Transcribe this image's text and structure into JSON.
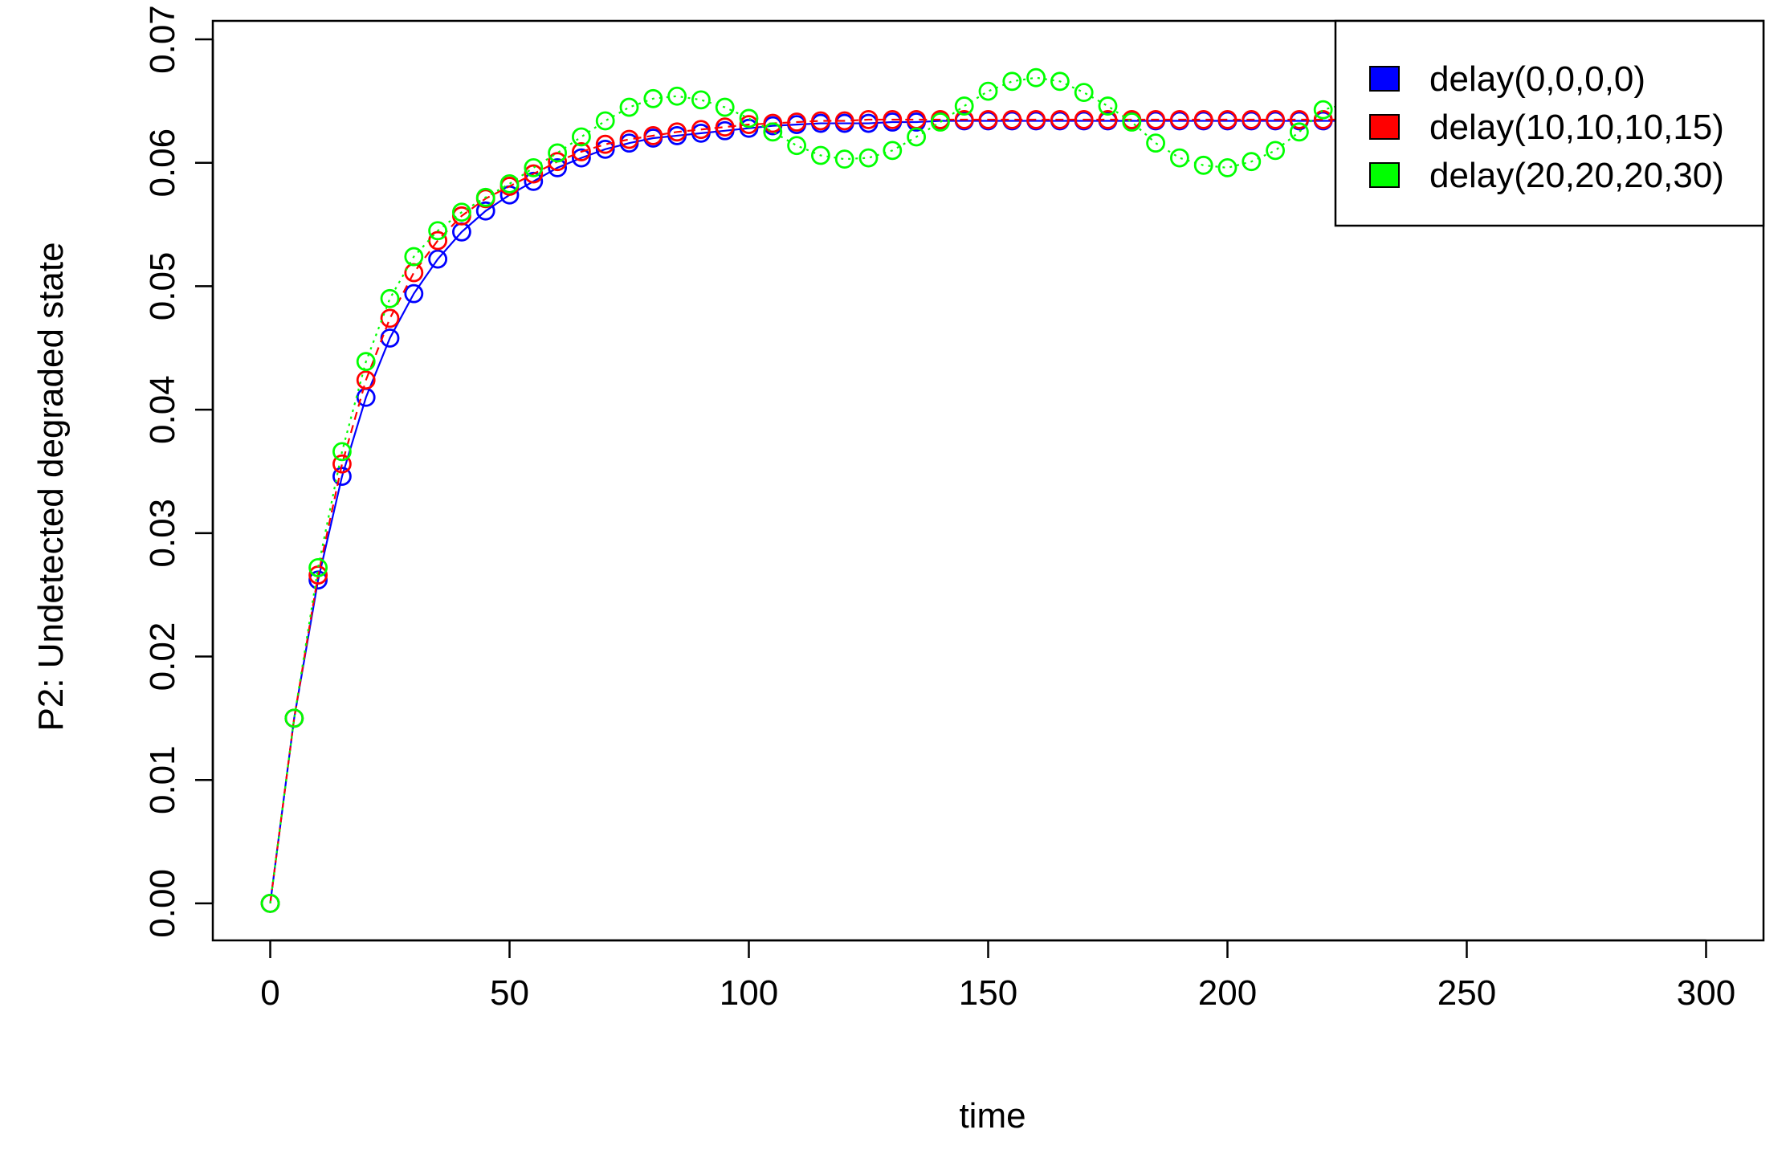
{
  "chart_data": {
    "type": "line",
    "title": "",
    "xlabel": "time",
    "ylabel": "P2: Undetected degraded state",
    "xlim": [
      -12,
      312
    ],
    "ylim": [
      -0.003,
      0.0715
    ],
    "xticks": [
      0,
      50,
      100,
      150,
      200,
      250,
      300
    ],
    "yticks": [
      0.0,
      0.01,
      0.02,
      0.03,
      0.04,
      0.05,
      0.06,
      0.07
    ],
    "xtick_labels": [
      "0",
      "50",
      "100",
      "150",
      "200",
      "250",
      "300"
    ],
    "ytick_labels": [
      "0.00",
      "0.01",
      "0.02",
      "0.03",
      "0.04",
      "0.05",
      "0.06",
      "0.07"
    ],
    "grid": false,
    "legend_position": "top-right",
    "marker": "open-circle",
    "x": [
      0,
      5,
      10,
      15,
      20,
      25,
      30,
      35,
      40,
      45,
      50,
      55,
      60,
      65,
      70,
      75,
      80,
      85,
      90,
      95,
      100,
      105,
      110,
      115,
      120,
      125,
      130,
      135,
      140,
      145,
      150,
      155,
      160,
      165,
      170,
      175,
      180,
      185,
      190,
      195,
      200,
      205,
      210,
      215,
      220,
      225,
      230,
      235,
      240,
      245,
      250,
      255,
      260,
      265,
      270,
      275,
      280,
      285,
      290,
      295,
      300
    ],
    "series": [
      {
        "name": "delay(0,0,0,0)",
        "color": "#0000ff",
        "line_style": "solid",
        "values": [
          0.0,
          0.015,
          0.0262,
          0.0346,
          0.041,
          0.0458,
          0.0494,
          0.0522,
          0.0544,
          0.0561,
          0.0574,
          0.0585,
          0.0596,
          0.0604,
          0.0611,
          0.0616,
          0.062,
          0.0622,
          0.0624,
          0.0626,
          0.0628,
          0.063,
          0.0631,
          0.0632,
          0.0632,
          0.0632,
          0.0633,
          0.0633,
          0.0634,
          0.0634,
          0.0634,
          0.0634,
          0.0634,
          0.0634,
          0.0634,
          0.0634,
          0.0634,
          0.0634,
          0.0634,
          0.0634,
          0.0634,
          0.0634,
          0.0634,
          0.0634,
          0.0634,
          0.0634,
          0.0634,
          0.0634,
          0.0634,
          0.0634,
          0.0634,
          0.0634,
          0.0634,
          0.0634,
          0.0634,
          0.0634,
          0.0634,
          0.0634,
          0.0634,
          0.0634,
          0.0634
        ]
      },
      {
        "name": "delay(10,10,10,15)",
        "color": "#ff0000",
        "line_style": "dashed",
        "values": [
          0.0,
          0.015,
          0.0266,
          0.0356,
          0.0424,
          0.0474,
          0.0511,
          0.0537,
          0.0557,
          0.0571,
          0.0581,
          0.0591,
          0.0601,
          0.0609,
          0.0615,
          0.0619,
          0.0622,
          0.0625,
          0.0627,
          0.0629,
          0.0631,
          0.0632,
          0.0633,
          0.0634,
          0.0634,
          0.0635,
          0.0635,
          0.0635,
          0.0635,
          0.0635,
          0.0635,
          0.0635,
          0.0635,
          0.0635,
          0.0635,
          0.0635,
          0.0635,
          0.0635,
          0.0635,
          0.0635,
          0.0635,
          0.0635,
          0.0635,
          0.0635,
          0.0635,
          0.0635,
          0.0635,
          0.0635,
          0.0635,
          0.0635,
          0.0635,
          0.0635,
          0.0635,
          0.0635,
          0.0635,
          0.0635,
          0.0635,
          0.0635,
          0.0635,
          0.0635,
          0.0635
        ]
      },
      {
        "name": "delay(20,20,20,30)",
        "color": "#00ff00",
        "line_style": "dotted",
        "values": [
          0.0,
          0.015,
          0.0272,
          0.0366,
          0.0439,
          0.049,
          0.0524,
          0.0545,
          0.056,
          0.0572,
          0.0583,
          0.0596,
          0.0608,
          0.0621,
          0.0634,
          0.0645,
          0.0652,
          0.0654,
          0.0651,
          0.0645,
          0.0636,
          0.0625,
          0.0614,
          0.0606,
          0.0603,
          0.0604,
          0.061,
          0.0621,
          0.0633,
          0.0646,
          0.0658,
          0.0666,
          0.0669,
          0.0666,
          0.0657,
          0.0646,
          0.0633,
          0.0616,
          0.0604,
          0.0598,
          0.0596,
          0.0601,
          0.061,
          0.0625,
          0.0643,
          0.0648,
          0.0648,
          0.0646,
          0.0643,
          0.064,
          0.0637,
          0.0635,
          0.0633,
          0.0632,
          0.0631,
          0.0632,
          0.0633,
          0.0634,
          0.0635,
          0.0636,
          0.0636
        ]
      }
    ]
  }
}
